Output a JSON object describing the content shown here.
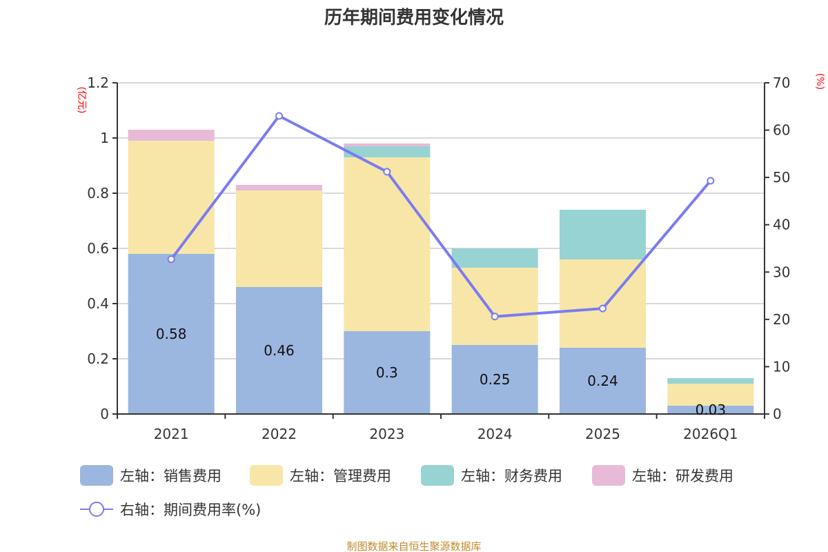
{
  "chart_data": {
    "type": "bar",
    "title": "历年期间费用变化情况",
    "categories": [
      "2021",
      "2022",
      "2023",
      "2024",
      "2025",
      "2026Q1"
    ],
    "left_axis": {
      "unit_label": "(亿元)",
      "ylim": [
        0,
        1.2
      ],
      "ticks": [
        "0",
        "0.2",
        "0.4",
        "0.6",
        "0.8",
        "1",
        "1.2"
      ]
    },
    "right_axis": {
      "unit_label": "(%)",
      "ylim": [
        0,
        70
      ],
      "ticks": [
        "0",
        "10",
        "20",
        "30",
        "40",
        "50",
        "60",
        "70"
      ]
    },
    "grid": true,
    "stacked": true,
    "series": [
      {
        "name": "左轴：销售费用",
        "axis": "left",
        "kind": "bar",
        "color": "#9bb7e0",
        "values": [
          0.58,
          0.46,
          0.3,
          0.25,
          0.24,
          0.03
        ],
        "labels": [
          "0.58",
          "0.46",
          "0.3",
          "0.25",
          "0.24",
          "0.03"
        ]
      },
      {
        "name": "左轴：管理费用",
        "axis": "left",
        "kind": "bar",
        "color": "#f8e6a8",
        "values": [
          0.41,
          0.35,
          0.63,
          0.28,
          0.32,
          0.08
        ]
      },
      {
        "name": "左轴：财务费用",
        "axis": "left",
        "kind": "bar",
        "color": "#97d3d3",
        "values": [
          0.0,
          0.0,
          0.04,
          0.07,
          0.18,
          0.02
        ]
      },
      {
        "name": "左轴：研发费用",
        "axis": "left",
        "kind": "bar",
        "color": "#e8bad8",
        "values": [
          0.04,
          0.02,
          0.01,
          0.0,
          0.0,
          0.0
        ]
      },
      {
        "name": "右轴：期间费用率(%)",
        "axis": "right",
        "kind": "line",
        "color": "#7b7cf0",
        "values": [
          32.7,
          63.0,
          51.2,
          20.6,
          22.3,
          49.3
        ]
      }
    ],
    "legend_position": "bottom",
    "footer": "制图数据来自恒生聚源数据库"
  }
}
